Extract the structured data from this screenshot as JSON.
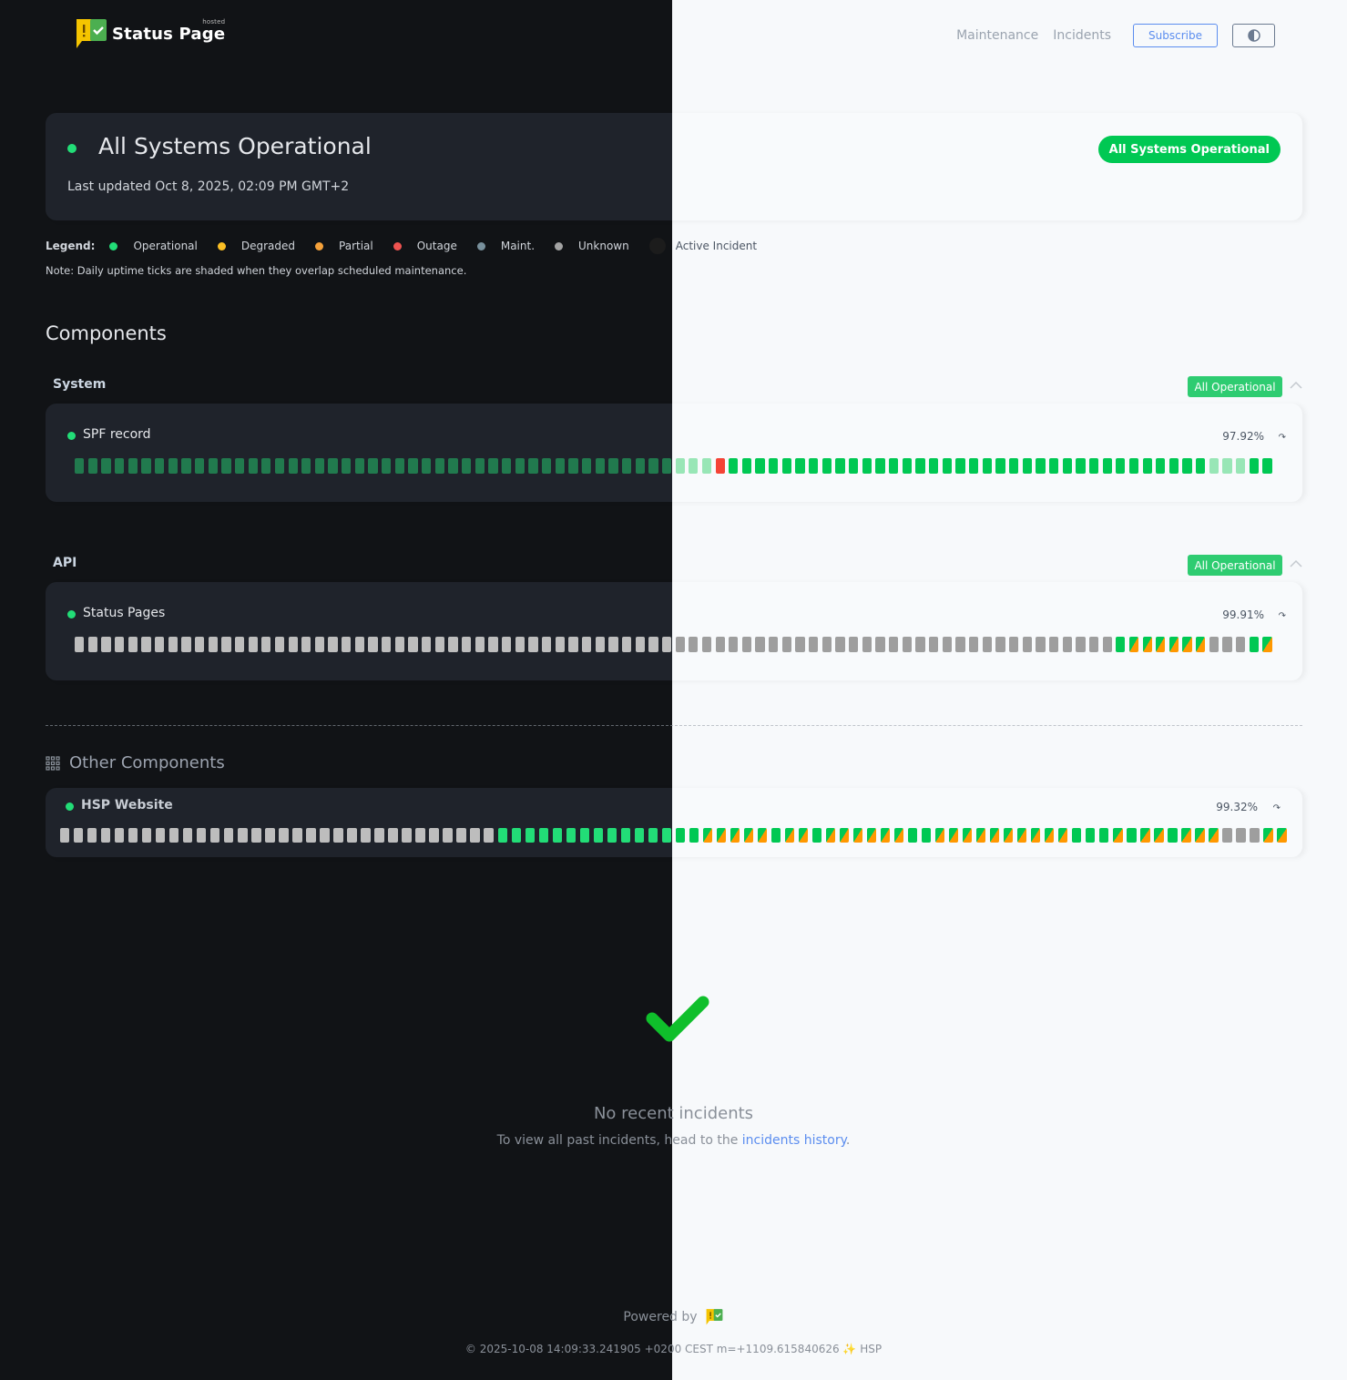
{
  "brand": {
    "name": "Status Page",
    "tag": "hosted"
  },
  "nav": {
    "maintenance": "Maintenance",
    "incidents": "Incidents",
    "subscribe": "Subscribe",
    "theme_toggle_icon": "half-circle-contrast-icon"
  },
  "summary": {
    "title": "All Systems Operational",
    "last_updated": "Last updated Oct 8, 2025, 02:09 PM GMT+2",
    "badge": "All Systems Operational"
  },
  "legend": {
    "label": "Legend:",
    "items": [
      {
        "label": "Operational",
        "color": "#22dd77"
      },
      {
        "label": "Degraded",
        "color": "#fbbf24"
      },
      {
        "label": "Partial",
        "color": "#f5a13a"
      },
      {
        "label": "Outage",
        "color": "#ef5350"
      },
      {
        "label": "Maint.",
        "color": "#78909c"
      },
      {
        "label": "Unknown",
        "color": "#a3a3a3"
      },
      {
        "label": "Active Incident",
        "color": "#1c1c1c"
      }
    ],
    "note": "Note: Daily uptime ticks are shaded when they overlap scheduled maintenance."
  },
  "components": {
    "title": "Components",
    "groups": [
      {
        "label": "System",
        "badge": "All Operational",
        "component": {
          "name": "SPF record",
          "uptime": "97.92%",
          "daily_runs": [
            {
              "status": "operational-shaded",
              "days": 48
            },
            {
              "status": "outage",
              "days": 1
            },
            {
              "status": "operational",
              "days": 36
            },
            {
              "status": "operational-shaded",
              "days": 3
            },
            {
              "status": "operational",
              "days": 2
            }
          ]
        }
      },
      {
        "label": "API",
        "badge": "All Operational",
        "component": {
          "name": "Status Pages",
          "uptime": "99.91%",
          "daily_runs": [
            {
              "status": "unknown",
              "days": 78
            },
            {
              "status": "operational",
              "days": 1
            },
            {
              "status": "partial-mixed",
              "days": 6
            },
            {
              "status": "unknown",
              "days": 3
            },
            {
              "status": "operational",
              "days": 1
            },
            {
              "status": "partial-mixed",
              "days": 1
            }
          ]
        }
      }
    ]
  },
  "other_components": {
    "title": "Other Components",
    "component": {
      "name": "HSP Website",
      "uptime": "99.32%",
      "daily_runs": [
        {
          "status": "unknown",
          "days": 32
        },
        {
          "status": "operational",
          "days": 15
        },
        {
          "status": "partial-mixed",
          "days": 5
        },
        {
          "status": "operational",
          "days": 1
        },
        {
          "status": "partial-mixed",
          "days": 2
        },
        {
          "status": "operational",
          "days": 1
        },
        {
          "status": "partial-mixed",
          "days": 6
        },
        {
          "status": "operational",
          "days": 2
        },
        {
          "status": "partial-mixed",
          "days": 10
        },
        {
          "status": "operational",
          "days": 3
        },
        {
          "status": "partial-mixed",
          "days": 1
        },
        {
          "status": "operational",
          "days": 1
        },
        {
          "status": "partial-mixed",
          "days": 2
        },
        {
          "status": "operational",
          "days": 1
        },
        {
          "status": "partial-mixed",
          "days": 3
        },
        {
          "status": "unknown",
          "days": 3
        },
        {
          "status": "partial-mixed",
          "days": 2
        }
      ]
    }
  },
  "incidents": {
    "title": "No recent incidents",
    "sub_prefix": "To view all past incidents, head to the ",
    "link": "incidents history",
    "sub_suffix": "."
  },
  "footer": {
    "powered_by": "Powered by",
    "copyright": "© 2025-10-08 14:09:33.241905 +0200 CEST m=+1109.615840626 ✨ HSP"
  }
}
